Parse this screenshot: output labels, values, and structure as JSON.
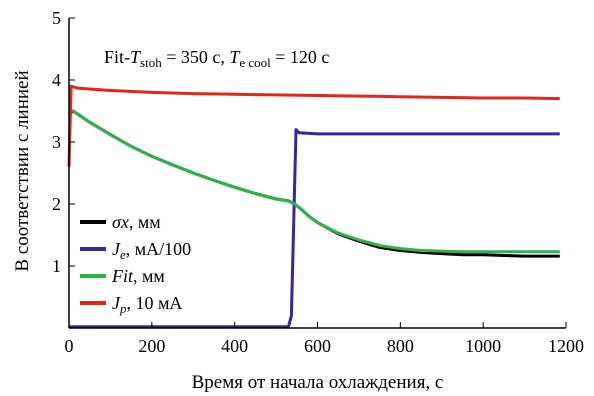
{
  "chart_data": {
    "type": "line",
    "xlabel": "Время от начала охлаждения, с",
    "ylabel": "В соответствии с линией",
    "xlim": [
      0,
      1200
    ],
    "ylim": [
      0,
      5
    ],
    "xticks": [
      0,
      200,
      400,
      600,
      800,
      1000,
      1200
    ],
    "yticks": [
      1,
      2,
      3,
      4,
      5
    ],
    "grid": false,
    "legend_position": "lower-left",
    "annotation": {
      "prefix": "Fit-",
      "t1_main": "T",
      "t1_sub": "stoh",
      "t1_value": " = 350 с, ",
      "t2_main": "T",
      "t2_sub": "e cool",
      "t2_value": " = 120 с"
    },
    "series": [
      {
        "name_main": "σx",
        "name_sub": "",
        "name_rest": ", мм",
        "color": "#000000",
        "x": [
          0,
          10,
          50,
          100,
          150,
          200,
          250,
          300,
          350,
          400,
          450,
          500,
          530,
          545,
          560,
          580,
          600,
          650,
          700,
          750,
          800,
          850,
          900,
          950,
          1000,
          1050,
          1100,
          1150,
          1185
        ],
        "y": [
          3.45,
          3.5,
          3.32,
          3.12,
          2.93,
          2.77,
          2.63,
          2.5,
          2.38,
          2.27,
          2.17,
          2.08,
          2.05,
          2.0,
          1.92,
          1.8,
          1.7,
          1.52,
          1.4,
          1.3,
          1.25,
          1.22,
          1.2,
          1.18,
          1.18,
          1.17,
          1.16,
          1.16,
          1.16
        ]
      },
      {
        "name_main": "J",
        "name_sub": "e",
        "name_rest": ", мА/100",
        "color": "#2e2aa0",
        "x": [
          0,
          100,
          200,
          300,
          400,
          500,
          530,
          537,
          548,
          555,
          600,
          700,
          800,
          900,
          1000,
          1100,
          1185
        ],
        "y": [
          0.02,
          0.02,
          0.02,
          0.02,
          0.02,
          0.02,
          0.02,
          0.2,
          3.2,
          3.15,
          3.13,
          3.13,
          3.13,
          3.13,
          3.13,
          3.13,
          3.13
        ]
      },
      {
        "name_main": "Fit",
        "name_sub": "",
        "name_rest": ", мм",
        "color": "#2fb24a",
        "x": [
          0,
          10,
          50,
          100,
          150,
          200,
          250,
          300,
          350,
          400,
          450,
          500,
          530,
          545,
          560,
          580,
          600,
          650,
          700,
          750,
          800,
          850,
          900,
          950,
          1000,
          1050,
          1100,
          1150,
          1185
        ],
        "y": [
          3.5,
          3.5,
          3.32,
          3.12,
          2.93,
          2.77,
          2.63,
          2.5,
          2.38,
          2.27,
          2.17,
          2.08,
          2.05,
          2.0,
          1.92,
          1.8,
          1.7,
          1.53,
          1.42,
          1.33,
          1.28,
          1.25,
          1.24,
          1.23,
          1.23,
          1.23,
          1.23,
          1.23,
          1.23
        ]
      },
      {
        "name_main": "J",
        "name_sub": "p",
        "name_rest": ", 10 мА",
        "color": "#e3251c",
        "x": [
          0,
          5,
          20,
          100,
          200,
          300,
          400,
          500,
          600,
          700,
          800,
          900,
          1000,
          1100,
          1185
        ],
        "y": [
          2.6,
          3.9,
          3.87,
          3.83,
          3.8,
          3.78,
          3.77,
          3.76,
          3.75,
          3.74,
          3.73,
          3.72,
          3.71,
          3.71,
          3.7
        ]
      }
    ]
  }
}
